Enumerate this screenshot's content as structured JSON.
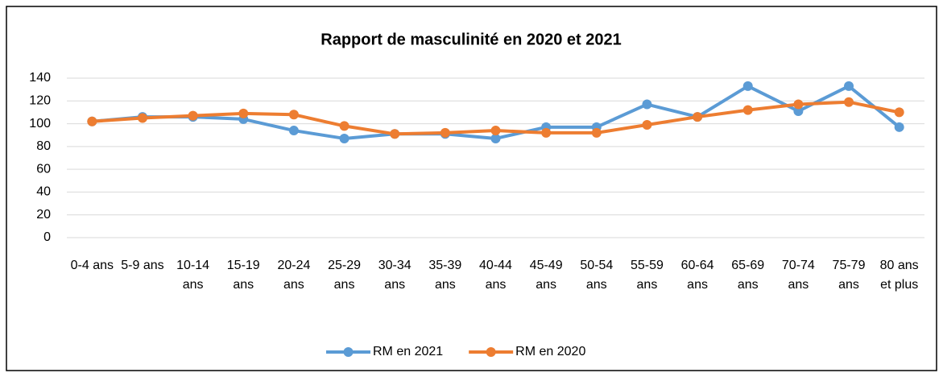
{
  "chart_data": {
    "type": "line",
    "title": "Rapport de masculinité en 2020 et 2021",
    "categories": [
      "0-4 ans",
      "5-9 ans",
      "10-14 ans",
      "15-19 ans",
      "20-24 ans",
      "25-29 ans",
      "30-34 ans",
      "35-39 ans",
      "40-44 ans",
      "45-49 ans",
      "50-54 ans",
      "55-59 ans",
      "60-64 ans",
      "65-69 ans",
      "70-74 ans",
      "75-79 ans",
      "80 ans et plus"
    ],
    "series": [
      {
        "name": "RM en 2021",
        "color": "#5b9bd5",
        "values": [
          102,
          106,
          106,
          104,
          94,
          87,
          91,
          91,
          87,
          97,
          97,
          117,
          106,
          133,
          111,
          133,
          97
        ]
      },
      {
        "name": "RM en 2020",
        "color": "#ed7d31",
        "values": [
          102,
          105,
          107,
          109,
          108,
          98,
          91,
          92,
          94,
          92,
          92,
          99,
          106,
          112,
          117,
          119,
          110
        ]
      }
    ],
    "ylim": [
      0,
      140
    ],
    "yticks": [
      0,
      20,
      40,
      60,
      80,
      100,
      120,
      140
    ],
    "grid": true,
    "legend": "bottom"
  }
}
